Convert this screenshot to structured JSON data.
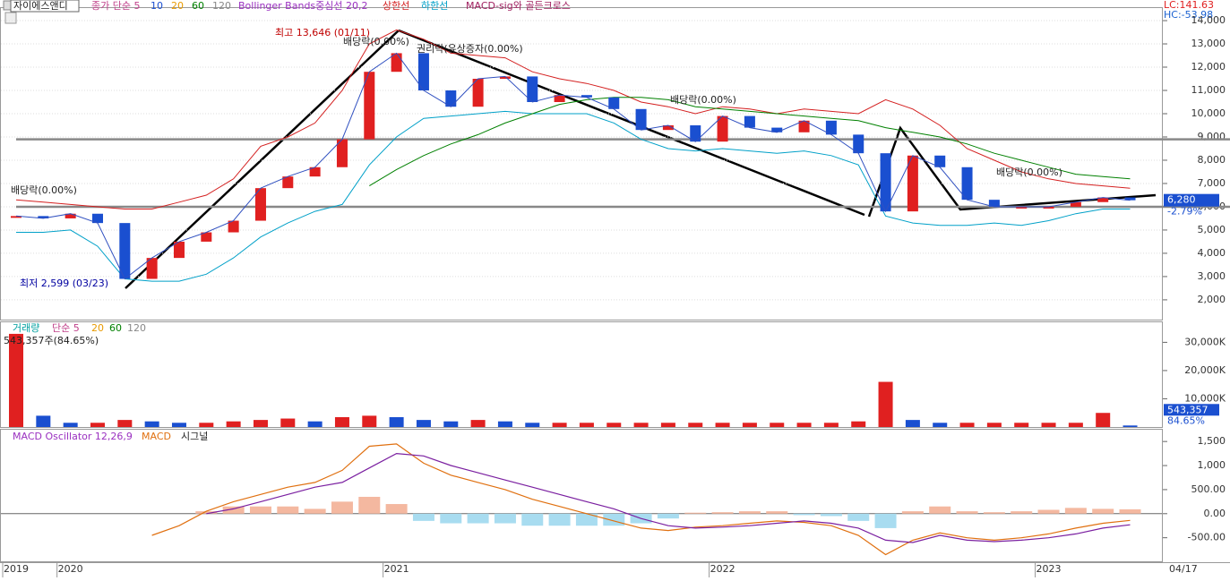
{
  "header": {
    "stock": "자이에스앤디",
    "legend_prefix": "종가 단순 5",
    "legend_items": [
      {
        "name": "10",
        "color": "#1a4fd0"
      },
      {
        "name": "20",
        "color": "#e89a00"
      },
      {
        "name": "60",
        "color": "#008000"
      },
      {
        "name": "120",
        "color": "#888888"
      }
    ],
    "bb_label": "Bollinger Bands중심선 20,2",
    "cross_label": "MACD-sig와 골든크로스",
    "lc": "LC:141.63",
    "hc": "HC:-53.98"
  },
  "x_axis": {
    "categories": [
      "2019",
      null,
      "2020",
      null,
      null,
      null,
      null,
      null,
      null,
      null,
      null,
      null,
      null,
      null,
      "2021",
      null,
      null,
      null,
      null,
      null,
      null,
      null,
      null,
      null,
      null,
      null,
      "2022",
      null,
      null,
      null,
      null,
      null,
      null,
      null,
      null,
      null,
      null,
      null,
      "2023",
      null,
      null,
      null
    ],
    "end_label": "04/17"
  },
  "chart_data": [
    {
      "type": "price",
      "ylim": [
        1150,
        14540
      ],
      "yticks": [
        {
          "value": 2000,
          "label": "2,000"
        },
        {
          "value": 3000,
          "label": "3,000"
        },
        {
          "value": 4000,
          "label": "4,000"
        },
        {
          "value": 5000,
          "label": "5,000"
        },
        {
          "value": 6000,
          "label": "6,000"
        },
        {
          "value": 7000,
          "label": "7,000"
        },
        {
          "value": 8000,
          "label": "8,000"
        },
        {
          "value": 9000,
          "label": "9,000"
        },
        {
          "value": 10000,
          "label": "10,000"
        },
        {
          "value": 11000,
          "label": "11,000"
        },
        {
          "value": 12000,
          "label": "12,000"
        },
        {
          "value": 13000,
          "label": "13,000"
        },
        {
          "value": 14000,
          "label": "14,000"
        }
      ],
      "close": [
        5600,
        5500,
        5700,
        5300,
        2900,
        3800,
        4500,
        4900,
        5400,
        6800,
        7300,
        7700,
        8900,
        11800,
        12600,
        11000,
        10300,
        11500,
        11600,
        10500,
        10800,
        10700,
        10200,
        9300,
        9500,
        8800,
        9900,
        9400,
        9200,
        9700,
        9100,
        8300,
        5800,
        8200,
        7700,
        6300,
        6000,
        6000,
        6000,
        6200,
        6400,
        6280
      ],
      "up_color": "#e02020",
      "down_color": "#1a4fd0",
      "series": [
        {
          "name": "상한선",
          "color": "#d42020",
          "values": [
            6300,
            6200,
            6100,
            6000,
            5900,
            5900,
            6200,
            6500,
            7200,
            8600,
            9000,
            9600,
            11000,
            13000,
            13600,
            13200,
            12600,
            12500,
            12400,
            11800,
            11500,
            11300,
            11000,
            10500,
            10300,
            10000,
            10300,
            10200,
            10000,
            10200,
            10100,
            10000,
            10600,
            10200,
            9500,
            8500,
            8000,
            7500,
            7200,
            7000,
            6900,
            6800
          ]
        },
        {
          "name": "하한선",
          "color": "#00a0c8",
          "values": [
            4900,
            4900,
            5000,
            4300,
            2900,
            2800,
            2800,
            3100,
            3800,
            4700,
            5300,
            5800,
            6100,
            7800,
            9000,
            9800,
            9900,
            10000,
            10100,
            10000,
            10000,
            10000,
            9600,
            8900,
            8500,
            8400,
            8500,
            8400,
            8300,
            8400,
            8200,
            7800,
            5600,
            5300,
            5200,
            5200,
            5300,
            5200,
            5400,
            5700,
            5900,
            5900
          ]
        },
        {
          "name": "60",
          "color": "#008000",
          "values": [
            null,
            null,
            null,
            null,
            null,
            null,
            null,
            null,
            null,
            null,
            null,
            null,
            null,
            6900,
            7600,
            8200,
            8700,
            9100,
            9600,
            10000,
            10400,
            10600,
            10700,
            10700,
            10600,
            10300,
            10200,
            10100,
            10000,
            9900,
            9800,
            9700,
            9400,
            9200,
            9000,
            8700,
            8300,
            8000,
            7700,
            7400,
            7300,
            7200
          ]
        }
      ],
      "hlines": [
        8900,
        6000
      ],
      "annotations": [
        "배당락(0.00%)",
        "최고 13,646 (01/11)",
        "배당락(0.00%)",
        "권리락(유상증자(0.00%)",
        "배당락(0.00%)",
        "배당락(0.00%)",
        "최저 2,599 (03/23)"
      ],
      "last_label": "6,280",
      "change_label": "-2.79%"
    },
    {
      "type": "bar",
      "title": "거래량",
      "legend": "단순 5",
      "legend_items": [
        "20",
        "60",
        "120"
      ],
      "ylim": [
        0,
        37100
      ],
      "yticks": [
        {
          "value": 10000,
          "label": "10,000K"
        },
        {
          "value": 20000,
          "label": "20,000K"
        },
        {
          "value": 30000,
          "label": "30,000K"
        }
      ],
      "values": [
        33000,
        4000,
        1500,
        1500,
        2500,
        2000,
        1500,
        1500,
        2000,
        2500,
        3000,
        2000,
        3500,
        4000,
        3500,
        2500,
        2000,
        2500,
        2000,
        1500,
        1500,
        1500,
        1500,
        1500,
        1500,
        1500,
        1500,
        1500,
        1500,
        1500,
        1500,
        2000,
        16000,
        2500,
        1500,
        1500,
        1500,
        1500,
        1500,
        1500,
        5000,
        543.357
      ],
      "last_info": "543,357주(84.65%)",
      "last_label": "543,357",
      "ratio_label": "84.65%"
    },
    {
      "type": "macd",
      "title": "MACD Oscillator 12,26,9",
      "ylim": [
        -990,
        1745
      ],
      "yticks": [
        {
          "value": -500,
          "label": "-500.00"
        },
        {
          "value": 0,
          "label": "0.00"
        },
        {
          "value": 500,
          "label": "500.00"
        },
        {
          "value": 1000,
          "label": "1,000"
        },
        {
          "value": 1500,
          "label": "1,500"
        }
      ],
      "oscillator": {
        "pos_color": "#f4b8a0",
        "neg_color": "#a8dcf0",
        "values": [
          null,
          null,
          null,
          null,
          null,
          null,
          null,
          50,
          150,
          150,
          150,
          100,
          250,
          350,
          200,
          -150,
          -200,
          -200,
          -200,
          -250,
          -250,
          -250,
          -250,
          -200,
          -100,
          20,
          30,
          50,
          50,
          -30,
          -50,
          -150,
          -300,
          50,
          150,
          50,
          30,
          50,
          80,
          120,
          100,
          90
        ]
      },
      "series": [
        {
          "name": "MACD",
          "color": "#e07010",
          "values": [
            null,
            null,
            null,
            null,
            null,
            -450,
            -250,
            50,
            250,
            400,
            550,
            650,
            900,
            1400,
            1450,
            1050,
            800,
            650,
            500,
            300,
            150,
            0,
            -150,
            -300,
            -350,
            -280,
            -250,
            -200,
            -150,
            -180,
            -250,
            -450,
            -850,
            -550,
            -400,
            -500,
            -550,
            -500,
            -420,
            -300,
            -200,
            -140
          ]
        },
        {
          "name": "시그널",
          "color": "#7a1fa0",
          "values": [
            null,
            null,
            null,
            null,
            null,
            null,
            null,
            0,
            100,
            250,
            400,
            550,
            650,
            950,
            1250,
            1200,
            1000,
            850,
            700,
            550,
            400,
            250,
            100,
            -100,
            -250,
            -300,
            -280,
            -250,
            -200,
            -150,
            -200,
            -300,
            -550,
            -600,
            -450,
            -550,
            -580,
            -550,
            -500,
            -420,
            -300,
            -230
          ]
        }
      ]
    }
  ]
}
